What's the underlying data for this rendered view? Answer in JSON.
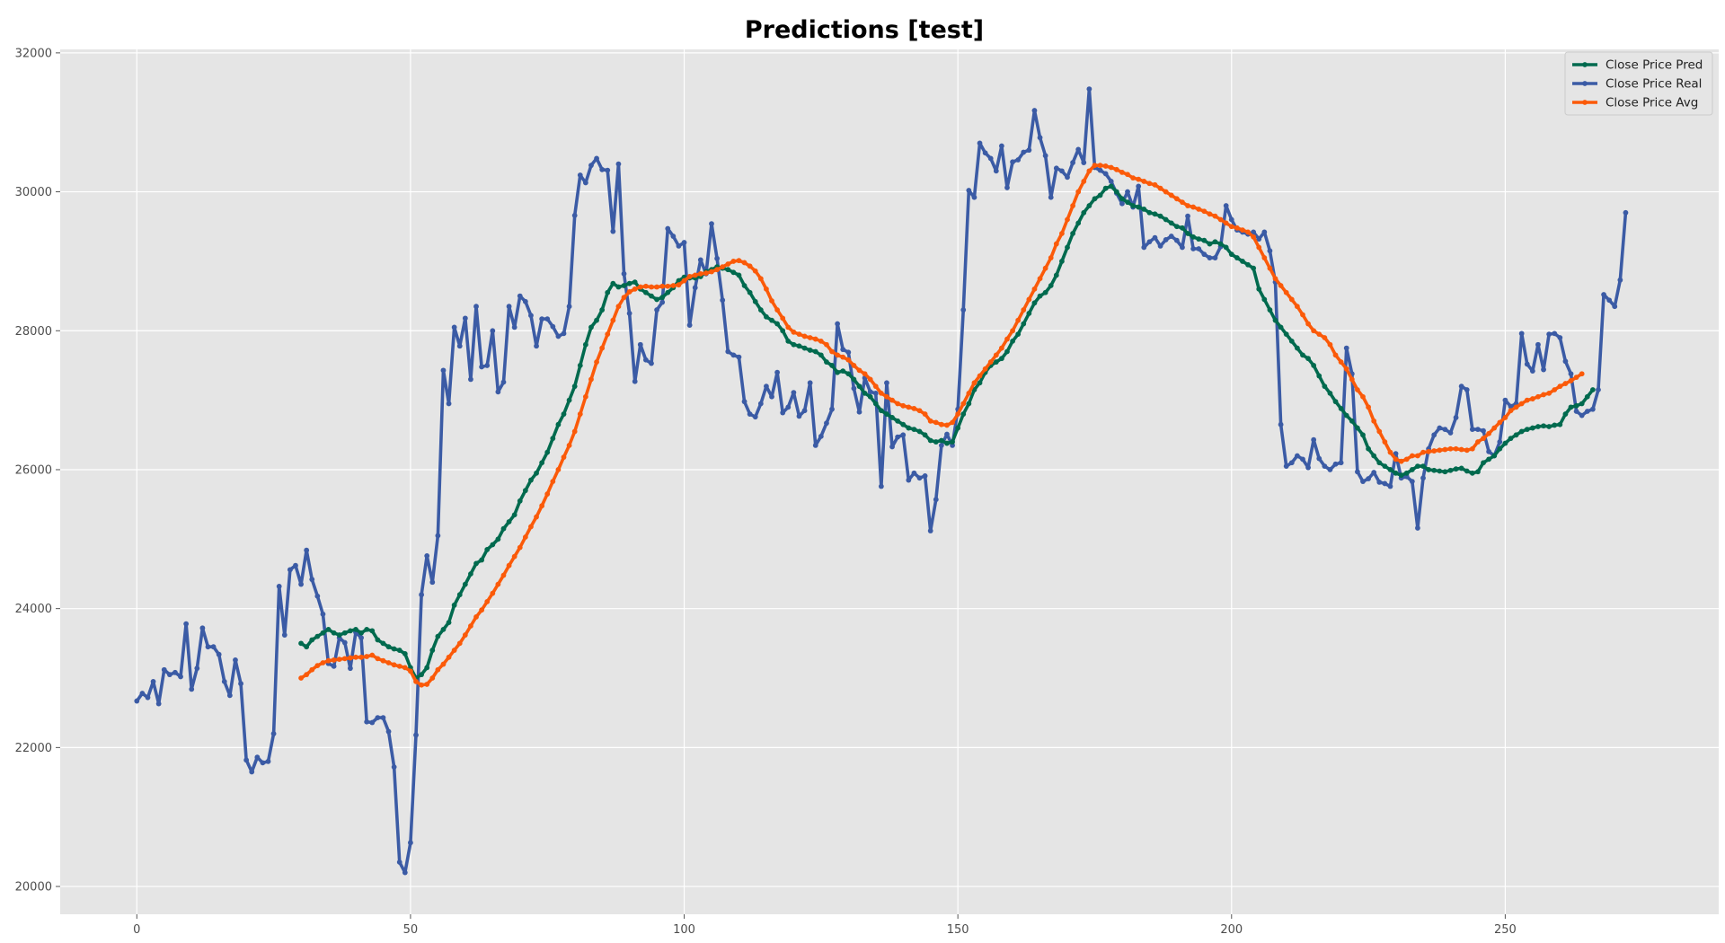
{
  "chart_data": {
    "type": "line",
    "title": "Predictions [test]",
    "xlabel": "",
    "ylabel": "",
    "xlim": [
      -14,
      289
    ],
    "ylim": [
      19600,
      32050
    ],
    "xticks": [
      0,
      50,
      100,
      150,
      200,
      250
    ],
    "yticks": [
      20000,
      22000,
      24000,
      26000,
      28000,
      30000,
      32000
    ],
    "grid": true,
    "legend_position": "top-right",
    "series": [
      {
        "name": "Close Price Pred",
        "color": "#006a4e",
        "x_start": 30,
        "values": [
          23500,
          23450,
          23550,
          23600,
          23650,
          23700,
          23650,
          23620,
          23650,
          23680,
          23700,
          23650,
          23700,
          23680,
          23550,
          23500,
          23450,
          23420,
          23400,
          23350,
          23150,
          23000,
          23050,
          23150,
          23400,
          23600,
          23700,
          23800,
          24050,
          24200,
          24350,
          24500,
          24650,
          24700,
          24850,
          24920,
          25000,
          25150,
          25250,
          25350,
          25550,
          25700,
          25850,
          25950,
          26100,
          26250,
          26450,
          26650,
          26800,
          27000,
          27200,
          27500,
          27800,
          28050,
          28150,
          28300,
          28550,
          28680,
          28630,
          28650,
          28680,
          28700,
          28600,
          28550,
          28500,
          28450,
          28480,
          28550,
          28620,
          28720,
          28770,
          28760,
          28760,
          28780,
          28850,
          28880,
          28920,
          28900,
          28880,
          28840,
          28800,
          28650,
          28550,
          28420,
          28300,
          28200,
          28150,
          28100,
          28000,
          27850,
          27800,
          27780,
          27750,
          27720,
          27700,
          27650,
          27550,
          27500,
          27400,
          27420,
          27380,
          27300,
          27200,
          27100,
          27050,
          26950,
          26850,
          26800,
          26750,
          26700,
          26650,
          26600,
          26580,
          26550,
          26500,
          26420,
          26400,
          26420,
          26380,
          26400,
          26600,
          26800,
          26950,
          27150,
          27250,
          27400,
          27500,
          27550,
          27600,
          27700,
          27850,
          27950,
          28100,
          28250,
          28400,
          28500,
          28550,
          28650,
          28800,
          29000,
          29200,
          29400,
          29550,
          29700,
          29800,
          29900,
          29950,
          30050,
          30080,
          30000,
          29900,
          29850,
          29800,
          29780,
          29750,
          29700,
          29680,
          29650,
          29600,
          29550,
          29500,
          29480,
          29400,
          29350,
          29320,
          29300,
          29250,
          29280,
          29250,
          29200,
          29100,
          29050,
          29000,
          28950,
          28900,
          28600,
          28450,
          28300,
          28150,
          28050,
          27950,
          27850,
          27750,
          27650,
          27600,
          27500,
          27350,
          27200,
          27100,
          26980,
          26880,
          26780,
          26700,
          26600,
          26500,
          26300,
          26200,
          26100,
          26050,
          26000,
          25950,
          25920,
          25950,
          26000,
          26050,
          26050,
          26000,
          25990,
          25980,
          25970,
          25990,
          26010,
          26020,
          25980,
          25950,
          25970,
          26100,
          26150,
          26200,
          26300,
          26380,
          26450,
          26500,
          26550,
          26580,
          26600,
          26620,
          26630,
          26620,
          26640,
          26650,
          26800,
          26900,
          26920,
          26950,
          27050,
          27150
        ]
      },
      {
        "name": "Close Price Real",
        "color": "#3b5ba5",
        "x_start": 0,
        "values": [
          22670,
          22780,
          22720,
          22950,
          22630,
          23120,
          23050,
          23080,
          23020,
          23780,
          22840,
          23140,
          23720,
          23450,
          23450,
          23340,
          22950,
          22750,
          23260,
          22920,
          21820,
          21650,
          21860,
          21780,
          21800,
          22200,
          24320,
          23620,
          24560,
          24620,
          24350,
          24840,
          24420,
          24180,
          23920,
          23210,
          23170,
          23580,
          23510,
          23140,
          23660,
          23580,
          22370,
          22360,
          22430,
          22430,
          22230,
          21720,
          20350,
          20200,
          20630,
          22180,
          24200,
          24760,
          24380,
          25050,
          27430,
          26950,
          28050,
          27780,
          28180,
          27300,
          28350,
          27480,
          27500,
          28000,
          27120,
          27260,
          28350,
          28050,
          28500,
          28420,
          28220,
          27780,
          28170,
          28170,
          28060,
          27920,
          27960,
          28350,
          29660,
          30240,
          30130,
          30380,
          30480,
          30320,
          30310,
          29430,
          30400,
          28820,
          28250,
          27270,
          27800,
          27580,
          27530,
          28300,
          28410,
          29470,
          29360,
          29220,
          29270,
          28080,
          28620,
          29020,
          28820,
          29540,
          29040,
          28440,
          27700,
          27650,
          27620,
          26980,
          26800,
          26760,
          26950,
          27200,
          27050,
          27400,
          26820,
          26900,
          27110,
          26770,
          26850,
          27250,
          26350,
          26480,
          26670,
          26870,
          28100,
          27730,
          27690,
          27170,
          26830,
          27320,
          27120,
          27100,
          25760,
          27250,
          26330,
          26470,
          26500,
          25850,
          25950,
          25880,
          25910,
          25120,
          25570,
          26350,
          26510,
          26350,
          26870,
          28300,
          30020,
          29920,
          30700,
          30560,
          30480,
          30300,
          30660,
          30060,
          30430,
          30460,
          30570,
          30600,
          31170,
          30780,
          30520,
          29920,
          30340,
          30300,
          30210,
          30420,
          30610,
          30420,
          31480,
          30350,
          30310,
          30260,
          30150,
          29980,
          29830,
          30000,
          29780,
          30080,
          29200,
          29280,
          29340,
          29220,
          29310,
          29360,
          29300,
          29200,
          29650,
          29180,
          29180,
          29100,
          29050,
          29050,
          29210,
          29800,
          29600,
          29450,
          29420,
          29390,
          29420,
          29320,
          29420,
          29150,
          28700,
          26650,
          26050,
          26100,
          26200,
          26150,
          26030,
          26430,
          26160,
          26050,
          26000,
          26080,
          26100,
          27750,
          27380,
          25970,
          25830,
          25870,
          25960,
          25820,
          25800,
          25760,
          26230,
          25880,
          25900,
          25830,
          25160,
          25880,
          26300,
          26500,
          26600,
          26580,
          26530,
          26750,
          27200,
          27150,
          26580,
          26580,
          26560,
          26260,
          26200,
          26400,
          27000,
          26910,
          26950,
          27960,
          27520,
          27420,
          27800,
          27440,
          27950,
          27960,
          27900,
          27560,
          27380,
          26840,
          26780,
          26840,
          26870,
          27150,
          28520,
          28440,
          28350,
          28730,
          29700
        ]
      },
      {
        "name": "Close Price Avg",
        "color": "#fb5a09",
        "x_start": 30,
        "values": [
          23000,
          23050,
          23120,
          23180,
          23220,
          23250,
          23260,
          23270,
          23280,
          23290,
          23300,
          23300,
          23310,
          23330,
          23280,
          23250,
          23220,
          23190,
          23170,
          23150,
          23100,
          22950,
          22900,
          22910,
          23000,
          23120,
          23200,
          23300,
          23400,
          23500,
          23620,
          23750,
          23880,
          23980,
          24100,
          24220,
          24350,
          24480,
          24620,
          24750,
          24880,
          25030,
          25180,
          25320,
          25480,
          25650,
          25830,
          26000,
          26180,
          26350,
          26550,
          26800,
          27050,
          27300,
          27550,
          27750,
          27950,
          28150,
          28350,
          28480,
          28560,
          28600,
          28630,
          28640,
          28630,
          28630,
          28640,
          28640,
          28650,
          28660,
          28720,
          28780,
          28800,
          28820,
          28830,
          28850,
          28880,
          28920,
          28960,
          29000,
          29010,
          28980,
          28930,
          28860,
          28750,
          28600,
          28430,
          28300,
          28180,
          28050,
          27980,
          27950,
          27920,
          27900,
          27880,
          27850,
          27800,
          27700,
          27650,
          27620,
          27580,
          27500,
          27430,
          27380,
          27300,
          27200,
          27100,
          27050,
          27000,
          26950,
          26920,
          26900,
          26880,
          26850,
          26800,
          26700,
          26680,
          26650,
          26640,
          26680,
          26800,
          26950,
          27100,
          27250,
          27350,
          27450,
          27550,
          27650,
          27750,
          27880,
          28000,
          28150,
          28300,
          28450,
          28600,
          28750,
          28900,
          29050,
          29250,
          29400,
          29600,
          29800,
          30000,
          30150,
          30300,
          30380,
          30380,
          30370,
          30350,
          30320,
          30280,
          30250,
          30200,
          30180,
          30150,
          30120,
          30100,
          30050,
          30000,
          29950,
          29900,
          29850,
          29800,
          29780,
          29750,
          29720,
          29680,
          29650,
          29600,
          29550,
          29500,
          29480,
          29450,
          29420,
          29350,
          29200,
          29050,
          28900,
          28750,
          28650,
          28550,
          28450,
          28350,
          28230,
          28100,
          28000,
          27950,
          27900,
          27800,
          27650,
          27550,
          27450,
          27300,
          27150,
          27050,
          26900,
          26700,
          26550,
          26400,
          26250,
          26150,
          26120,
          26150,
          26200,
          26200,
          26250,
          26260,
          26270,
          26280,
          26290,
          26300,
          26300,
          26290,
          26280,
          26300,
          26400,
          26450,
          26520,
          26600,
          26680,
          26750,
          26850,
          26900,
          26950,
          27000,
          27020,
          27050,
          27080,
          27100,
          27150,
          27200,
          27240,
          27280,
          27330,
          27380
        ]
      }
    ]
  }
}
